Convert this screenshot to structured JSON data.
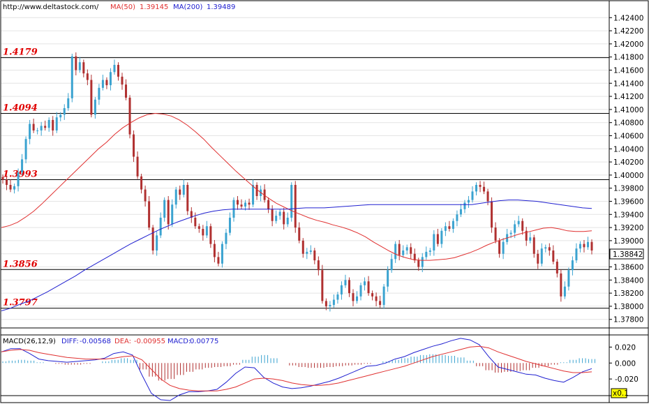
{
  "header": {
    "source": "http://www.deltastock.com/",
    "ma50_label": "MA(50)",
    "ma50_value": "1.39145",
    "ma200_label": "MA(200)",
    "ma200_value": "1.39489"
  },
  "last_price": "1.38842",
  "macd_header": {
    "label": "MACD(26,12,9)",
    "diff_label": "DIFF:",
    "diff_value": "-0.00568",
    "dea_label": "DEA:",
    "dea_value": "-0.00955",
    "macd_label": "MACD:",
    "macd_value": "0.00775"
  },
  "macd_scale_badge": "x0.1",
  "colors": {
    "up": "#3ba3d0",
    "down": "#b03030",
    "ma50": "#e03030",
    "ma200": "#2020d0",
    "level_text": "#e00000",
    "macd_diff": "#2020d0",
    "macd_dea": "#e03030"
  },
  "chart_data": [
    {
      "type": "candlestick",
      "ylim": [
        1.3768,
        1.4252
      ],
      "y_ticks": [
        "1.42400",
        "1.42200",
        "1.42000",
        "1.41800",
        "1.41600",
        "1.41400",
        "1.41200",
        "1.41000",
        "1.40800",
        "1.40600",
        "1.40400",
        "1.40200",
        "1.40000",
        "1.39800",
        "1.39600",
        "1.39400",
        "1.39200",
        "1.39000",
        "1.38800",
        "1.38600",
        "1.38400",
        "1.38200",
        "1.38000",
        "1.37800"
      ],
      "levels": [
        "1.4179",
        "1.4094",
        "1.3993",
        "1.3856",
        "1.3797"
      ],
      "close": [
        1.3993,
        1.3985,
        1.3978,
        1.3983,
        1.4004,
        1.4024,
        1.4055,
        1.4078,
        1.4068,
        1.4068,
        1.4075,
        1.4072,
        1.4084,
        1.4068,
        1.4088,
        1.4092,
        1.4102,
        1.4117,
        1.4181,
        1.416,
        1.4172,
        1.4155,
        1.4145,
        1.4092,
        1.4115,
        1.4133,
        1.4145,
        1.4137,
        1.4157,
        1.4168,
        1.415,
        1.4138,
        1.4118,
        1.4062,
        1.4028,
        1.3998,
        1.3978,
        1.396,
        1.392,
        1.3885,
        1.3908,
        1.3935,
        1.3962,
        1.3925,
        1.3955,
        1.3978,
        1.397,
        1.3985,
        1.3945,
        1.3935,
        1.3922,
        1.3918,
        1.3908,
        1.3922,
        1.3895,
        1.3875,
        1.3865,
        1.3895,
        1.3912,
        1.3935,
        1.3962,
        1.3955,
        1.3952,
        1.3958,
        1.3955,
        1.3985,
        1.3968,
        1.3978,
        1.3962,
        1.3948,
        1.393,
        1.3938,
        1.3944,
        1.3925,
        1.3935,
        1.3985,
        1.392,
        1.39,
        1.388,
        1.3883,
        1.3885,
        1.387,
        1.3855,
        1.3808,
        1.38,
        1.3802,
        1.381,
        1.3818,
        1.3832,
        1.384,
        1.382,
        1.3808,
        1.3815,
        1.3832,
        1.3838,
        1.382,
        1.3815,
        1.3808,
        1.3802,
        1.383,
        1.3855,
        1.3872,
        1.3895,
        1.3878,
        1.3885,
        1.389,
        1.388,
        1.387,
        1.386,
        1.3875,
        1.3883,
        1.3885,
        1.391,
        1.3895,
        1.3915,
        1.3922,
        1.3918,
        1.393,
        1.394,
        1.3948,
        1.3958,
        1.3962,
        1.3975,
        1.3985,
        1.3982,
        1.3975,
        1.396,
        1.392,
        1.39,
        1.388,
        1.3898,
        1.391,
        1.3912,
        1.3925,
        1.393,
        1.3915,
        1.39,
        1.3905,
        1.388,
        1.3865,
        1.3888,
        1.389,
        1.3885,
        1.3868,
        1.385,
        1.3815,
        1.383,
        1.3855,
        1.387,
        1.3888,
        1.3895,
        1.389,
        1.3898,
        1.3885
      ],
      "ma50": [
        1.392,
        1.3923,
        1.3928,
        1.3936,
        1.3945,
        1.3956,
        1.3968,
        1.398,
        1.3992,
        1.4004,
        1.4016,
        1.4028,
        1.404,
        1.405,
        1.4062,
        1.4072,
        1.408,
        1.4087,
        1.4092,
        1.4094,
        1.4093,
        1.409,
        1.4084,
        1.4076,
        1.4066,
        1.4055,
        1.4042,
        1.403,
        1.4018,
        1.4006,
        1.3995,
        1.3984,
        1.3974,
        1.3965,
        1.3957,
        1.3951,
        1.3945,
        1.394,
        1.3935,
        1.3931,
        1.3928,
        1.3924,
        1.3921,
        1.3917,
        1.3912,
        1.3906,
        1.3898,
        1.3891,
        1.3884,
        1.3878,
        1.3874,
        1.3871,
        1.387,
        1.387,
        1.3871,
        1.3872,
        1.3874,
        1.3878,
        1.3882,
        1.3887,
        1.3893,
        1.3898,
        1.3902,
        1.3906,
        1.391,
        1.3913,
        1.3916,
        1.3919,
        1.392,
        1.3918,
        1.3915,
        1.3914,
        1.3914,
        1.3915
      ],
      "ma200": [
        1.3793,
        1.3797,
        1.3803,
        1.3808,
        1.3815,
        1.3822,
        1.383,
        1.3838,
        1.3846,
        1.3855,
        1.3863,
        1.3871,
        1.3879,
        1.3887,
        1.3895,
        1.3902,
        1.3909,
        1.3916,
        1.3922,
        1.3928,
        1.3933,
        1.3938,
        1.3942,
        1.3945,
        1.3947,
        1.3948,
        1.3948,
        1.3948,
        1.3948,
        1.3948,
        1.3948,
        1.3948,
        1.3949,
        1.395,
        1.395,
        1.395,
        1.3951,
        1.3952,
        1.3953,
        1.3954,
        1.3955,
        1.3955,
        1.3955,
        1.3955,
        1.3955,
        1.3955,
        1.3955,
        1.3955,
        1.3955,
        1.3955,
        1.3955,
        1.3955,
        1.3957,
        1.3959,
        1.3961,
        1.3962,
        1.3962,
        1.3961,
        1.396,
        1.3958,
        1.3956,
        1.3954,
        1.3952,
        1.395,
        1.3949
      ]
    },
    {
      "type": "macd",
      "ylim": [
        -0.04,
        0.03
      ],
      "y_ticks": [
        "0.020",
        "0.000",
        "-0.020"
      ],
      "diff": [
        0.014,
        0.018,
        0.018,
        0.012,
        0.005,
        0.003,
        0.002,
        0.001,
        0.002,
        0.003,
        0.004,
        0.006,
        0.012,
        0.014,
        0.01,
        -0.015,
        -0.038,
        -0.046,
        -0.047,
        -0.04,
        -0.036,
        -0.036,
        -0.035,
        -0.033,
        -0.024,
        -0.013,
        -0.005,
        -0.006,
        -0.018,
        -0.025,
        -0.03,
        -0.032,
        -0.031,
        -0.029,
        -0.026,
        -0.023,
        -0.019,
        -0.014,
        -0.009,
        -0.004,
        -0.003,
        0.0,
        0.005,
        0.008,
        0.013,
        0.017,
        0.021,
        0.024,
        0.028,
        0.031,
        0.029,
        0.023,
        0.008,
        -0.005,
        -0.008,
        -0.011,
        -0.014,
        -0.015,
        -0.019,
        -0.022,
        -0.024,
        -0.018,
        -0.011,
        -0.007
      ],
      "dea": [
        0.014,
        0.016,
        0.017,
        0.016,
        0.013,
        0.011,
        0.009,
        0.007,
        0.006,
        0.005,
        0.005,
        0.005,
        0.006,
        0.008,
        0.009,
        0.004,
        -0.008,
        -0.02,
        -0.028,
        -0.032,
        -0.034,
        -0.035,
        -0.035,
        -0.035,
        -0.033,
        -0.03,
        -0.025,
        -0.02,
        -0.019,
        -0.02,
        -0.022,
        -0.025,
        -0.027,
        -0.028,
        -0.028,
        -0.027,
        -0.025,
        -0.022,
        -0.019,
        -0.016,
        -0.013,
        -0.01,
        -0.007,
        -0.004,
        0.0,
        0.004,
        0.008,
        0.011,
        0.014,
        0.017,
        0.02,
        0.021,
        0.019,
        0.014,
        0.01,
        0.006,
        0.002,
        -0.001,
        -0.004,
        -0.007,
        -0.01,
        -0.012,
        -0.012,
        -0.011
      ],
      "macd": [
        0.002,
        0.003,
        0.004,
        0.003,
        0.001,
        0.0,
        -0.001,
        -0.002,
        -0.002,
        -0.001,
        0.0,
        0.002,
        0.004,
        0.006,
        0.004,
        -0.008,
        -0.017,
        -0.022,
        -0.02,
        -0.015,
        -0.011,
        -0.008,
        -0.006,
        -0.005,
        -0.004,
        -0.002,
        0.004,
        0.008,
        0.01,
        0.006,
        0.0,
        -0.003,
        -0.005,
        -0.006,
        -0.006,
        -0.005,
        -0.004,
        -0.003,
        -0.002,
        -0.001,
        0.0,
        0.002,
        0.004,
        0.006,
        0.008,
        0.01,
        0.011,
        0.01,
        0.009,
        0.007,
        0.003,
        -0.004,
        -0.009,
        -0.012,
        -0.011,
        -0.01,
        -0.009,
        -0.006,
        -0.004,
        -0.002,
        0.001,
        0.004,
        0.006,
        0.005
      ]
    }
  ]
}
